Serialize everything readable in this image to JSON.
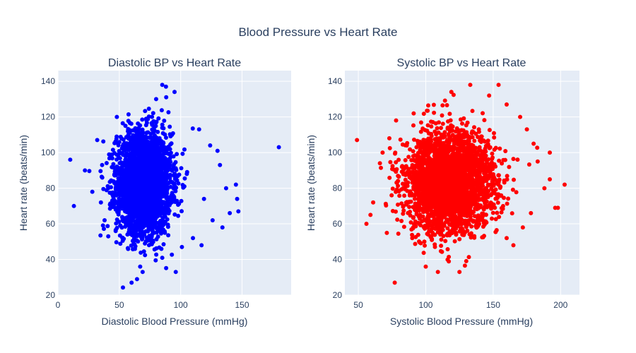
{
  "figure": {
    "title": "Blood Pressure vs Heart Rate",
    "title_color": "#2a3f5f",
    "plot_bg": "#e5ecf6",
    "grid_color": "#ffffff"
  },
  "chart_data": [
    {
      "type": "scatter",
      "title": "Diastolic BP vs Heart Rate",
      "xlabel": "Diastolic Blood Pressure (mmHg)",
      "ylabel": "Heart rate (beats/min)",
      "xlim": [
        0,
        190
      ],
      "ylim": [
        20,
        146
      ],
      "xticks": [
        0,
        50,
        100,
        150
      ],
      "yticks": [
        20,
        40,
        60,
        80,
        100,
        120,
        140
      ],
      "grid": true,
      "legend": "none",
      "color": "#0000ff",
      "cluster": {
        "x_center": 70,
        "x_spread": 11,
        "y_center": 83,
        "y_spread": 14,
        "count": 3000
      },
      "outliers": [
        {
          "x": 10,
          "y": 96
        },
        {
          "x": 13,
          "y": 70
        },
        {
          "x": 22,
          "y": 90
        },
        {
          "x": 28,
          "y": 78
        },
        {
          "x": 32,
          "y": 107
        },
        {
          "x": 35,
          "y": 72
        },
        {
          "x": 36,
          "y": 93
        },
        {
          "x": 38,
          "y": 62
        },
        {
          "x": 41,
          "y": 53
        },
        {
          "x": 60,
          "y": 27
        },
        {
          "x": 67,
          "y": 36
        },
        {
          "x": 69,
          "y": 33
        },
        {
          "x": 80,
          "y": 130
        },
        {
          "x": 85,
          "y": 138
        },
        {
          "x": 88,
          "y": 137
        },
        {
          "x": 95,
          "y": 134
        },
        {
          "x": 96,
          "y": 33
        },
        {
          "x": 101,
          "y": 47
        },
        {
          "x": 115,
          "y": 113
        },
        {
          "x": 117,
          "y": 48
        },
        {
          "x": 119,
          "y": 74
        },
        {
          "x": 124,
          "y": 104
        },
        {
          "x": 130,
          "y": 101
        },
        {
          "x": 132,
          "y": 93
        },
        {
          "x": 134,
          "y": 58
        },
        {
          "x": 137,
          "y": 80
        },
        {
          "x": 140,
          "y": 66
        },
        {
          "x": 145,
          "y": 82
        },
        {
          "x": 146,
          "y": 74
        },
        {
          "x": 147,
          "y": 67
        },
        {
          "x": 180,
          "y": 103
        },
        {
          "x": 126,
          "y": 62
        },
        {
          "x": 110,
          "y": 52
        },
        {
          "x": 48,
          "y": 120
        },
        {
          "x": 55,
          "y": 115
        },
        {
          "x": 105,
          "y": 88
        }
      ]
    },
    {
      "type": "scatter",
      "title": "Systolic BP vs Heart Rate",
      "xlabel": "Systolic Blood Pressure (mmHg)",
      "ylabel": "Heart rate (beats/min)",
      "xlim": [
        40,
        214
      ],
      "ylim": [
        20,
        146
      ],
      "xticks": [
        50,
        100,
        150,
        200
      ],
      "yticks": [
        20,
        40,
        60,
        80,
        100,
        120,
        140
      ],
      "grid": true,
      "legend": "none",
      "color": "#ff0000",
      "cluster": {
        "x_center": 118,
        "x_spread": 16,
        "y_center": 83,
        "y_spread": 14,
        "count": 3000
      },
      "outliers": [
        {
          "x": 49,
          "y": 107
        },
        {
          "x": 56,
          "y": 60
        },
        {
          "x": 59,
          "y": 65
        },
        {
          "x": 61,
          "y": 72
        },
        {
          "x": 66,
          "y": 94
        },
        {
          "x": 68,
          "y": 100
        },
        {
          "x": 73,
          "y": 108
        },
        {
          "x": 77,
          "y": 27
        },
        {
          "x": 78,
          "y": 118
        },
        {
          "x": 100,
          "y": 36
        },
        {
          "x": 109,
          "y": 33
        },
        {
          "x": 119,
          "y": 134
        },
        {
          "x": 125,
          "y": 33
        },
        {
          "x": 133,
          "y": 138
        },
        {
          "x": 147,
          "y": 132
        },
        {
          "x": 154,
          "y": 138
        },
        {
          "x": 160,
          "y": 127
        },
        {
          "x": 165,
          "y": 48
        },
        {
          "x": 170,
          "y": 120
        },
        {
          "x": 175,
          "y": 113
        },
        {
          "x": 180,
          "y": 105
        },
        {
          "x": 183,
          "y": 95
        },
        {
          "x": 188,
          "y": 80
        },
        {
          "x": 192,
          "y": 85
        },
        {
          "x": 196,
          "y": 69
        },
        {
          "x": 198,
          "y": 69
        },
        {
          "x": 203,
          "y": 82
        },
        {
          "x": 192,
          "y": 100
        },
        {
          "x": 178,
          "y": 66
        },
        {
          "x": 172,
          "y": 58
        },
        {
          "x": 160,
          "y": 52
        },
        {
          "x": 90,
          "y": 52
        }
      ]
    }
  ]
}
